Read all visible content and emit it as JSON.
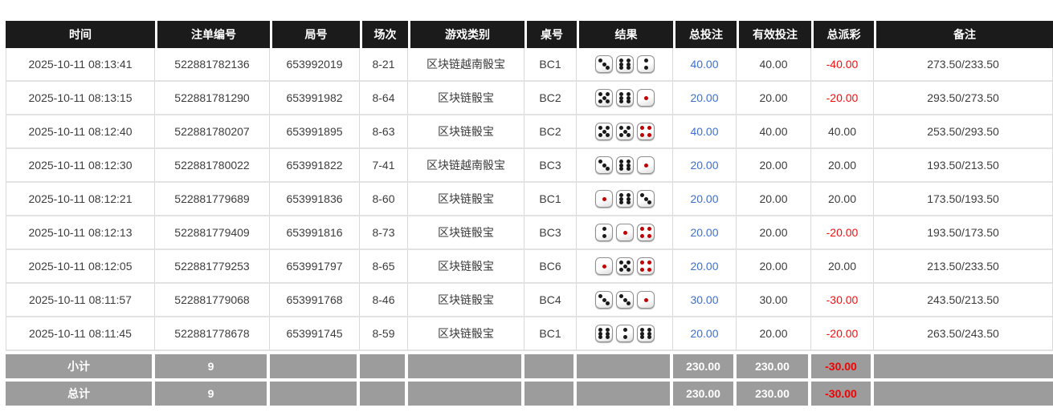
{
  "colors": {
    "header_bg": "#1b1b1b",
    "footer_bg": "#9c9c9c",
    "accent_blue": "#3d6fd1",
    "negative_red": "#ee1111"
  },
  "table": {
    "columns": [
      {
        "key": "time",
        "label": "时间"
      },
      {
        "key": "bet_id",
        "label": "注单编号"
      },
      {
        "key": "round_id",
        "label": "局号"
      },
      {
        "key": "session",
        "label": "场次"
      },
      {
        "key": "game_type",
        "label": "游戏类别"
      },
      {
        "key": "table_no",
        "label": "桌号"
      },
      {
        "key": "result",
        "label": "结果"
      },
      {
        "key": "total_bet",
        "label": "总投注"
      },
      {
        "key": "valid_bet",
        "label": "有效投注"
      },
      {
        "key": "total_payout",
        "label": "总派彩"
      },
      {
        "key": "remark",
        "label": "备注"
      }
    ],
    "rows": [
      {
        "time": "2025-10-11 08:13:41",
        "bet_id": "522881782136",
        "round_id": "653992019",
        "session": "8-21",
        "game_type": "区块链越南骰宝",
        "table_no": "BC1",
        "dice": [
          3,
          6,
          2
        ],
        "total_bet": "40.00",
        "valid_bet": "40.00",
        "total_payout": "-40.00",
        "remark": "273.50/233.50"
      },
      {
        "time": "2025-10-11 08:13:15",
        "bet_id": "522881781290",
        "round_id": "653991982",
        "session": "8-64",
        "game_type": "区块链骰宝",
        "table_no": "BC2",
        "dice": [
          5,
          6,
          1
        ],
        "total_bet": "20.00",
        "valid_bet": "20.00",
        "total_payout": "-20.00",
        "remark": "293.50/273.50"
      },
      {
        "time": "2025-10-11 08:12:40",
        "bet_id": "522881780207",
        "round_id": "653991895",
        "session": "8-63",
        "game_type": "区块链骰宝",
        "table_no": "BC2",
        "dice": [
          5,
          5,
          4
        ],
        "total_bet": "40.00",
        "valid_bet": "40.00",
        "total_payout": "40.00",
        "remark": "253.50/293.50"
      },
      {
        "time": "2025-10-11 08:12:30",
        "bet_id": "522881780022",
        "round_id": "653991822",
        "session": "7-41",
        "game_type": "区块链越南骰宝",
        "table_no": "BC3",
        "dice": [
          3,
          6,
          1
        ],
        "total_bet": "20.00",
        "valid_bet": "20.00",
        "total_payout": "20.00",
        "remark": "193.50/213.50"
      },
      {
        "time": "2025-10-11 08:12:21",
        "bet_id": "522881779689",
        "round_id": "653991836",
        "session": "8-60",
        "game_type": "区块链骰宝",
        "table_no": "BC1",
        "dice": [
          1,
          6,
          3
        ],
        "total_bet": "20.00",
        "valid_bet": "20.00",
        "total_payout": "20.00",
        "remark": "173.50/193.50"
      },
      {
        "time": "2025-10-11 08:12:13",
        "bet_id": "522881779409",
        "round_id": "653991816",
        "session": "8-73",
        "game_type": "区块链骰宝",
        "table_no": "BC3",
        "dice": [
          2,
          1,
          4
        ],
        "total_bet": "20.00",
        "valid_bet": "20.00",
        "total_payout": "-20.00",
        "remark": "193.50/173.50"
      },
      {
        "time": "2025-10-11 08:12:05",
        "bet_id": "522881779253",
        "round_id": "653991797",
        "session": "8-65",
        "game_type": "区块链骰宝",
        "table_no": "BC6",
        "dice": [
          1,
          5,
          4
        ],
        "total_bet": "20.00",
        "valid_bet": "20.00",
        "total_payout": "20.00",
        "remark": "213.50/233.50"
      },
      {
        "time": "2025-10-11 08:11:57",
        "bet_id": "522881779068",
        "round_id": "653991768",
        "session": "8-46",
        "game_type": "区块链骰宝",
        "table_no": "BC4",
        "dice": [
          3,
          3,
          1
        ],
        "total_bet": "30.00",
        "valid_bet": "30.00",
        "total_payout": "-30.00",
        "remark": "243.50/213.50"
      },
      {
        "time": "2025-10-11 08:11:45",
        "bet_id": "522881778678",
        "round_id": "653991745",
        "session": "8-59",
        "game_type": "区块链骰宝",
        "table_no": "BC1",
        "dice": [
          6,
          2,
          6
        ],
        "total_bet": "20.00",
        "valid_bet": "20.00",
        "total_payout": "-20.00",
        "remark": "263.50/243.50"
      }
    ],
    "footer": [
      {
        "label": "小计",
        "count": "9",
        "total_bet": "230.00",
        "valid_bet": "230.00",
        "total_payout": "-30.00"
      },
      {
        "label": "总计",
        "count": "9",
        "total_bet": "230.00",
        "valid_bet": "230.00",
        "total_payout": "-30.00"
      }
    ]
  }
}
